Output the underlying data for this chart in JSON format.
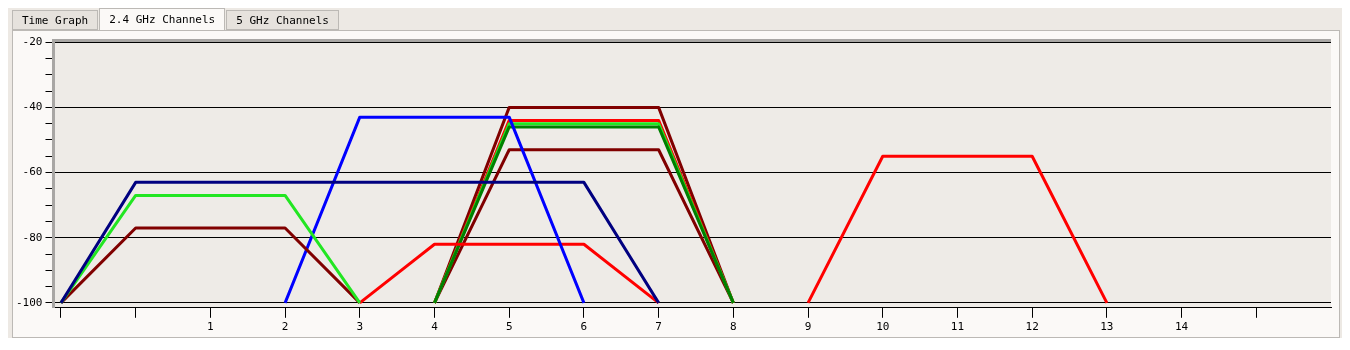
{
  "chart_data": {
    "type": "line",
    "annotations": [
      "Time Graph",
      "2.4 GHz Channels",
      "5 GHz Channels"
    ],
    "xlim": [
      -1.1,
      16
    ],
    "ylim": [
      -101.5,
      -19.5
    ],
    "xticks": [
      {
        "value": -1,
        "label": null
      },
      {
        "value": 0,
        "label": null
      },
      1,
      2,
      3,
      4,
      5,
      6,
      7,
      8,
      9,
      10,
      11,
      12,
      13,
      14,
      {
        "value": 15,
        "label": null
      }
    ],
    "yticks": [
      -100,
      {
        "value": -95,
        "label": null
      },
      {
        "value": -90,
        "label": null
      },
      {
        "value": -85,
        "label": null
      },
      -80,
      {
        "value": -75,
        "label": null
      },
      {
        "value": -70,
        "label": null
      },
      {
        "value": -65,
        "label": null
      },
      -60,
      {
        "value": -55,
        "label": null
      },
      {
        "value": -50,
        "label": null
      },
      {
        "value": -45,
        "label": null
      },
      -40,
      {
        "value": -35,
        "label": null
      },
      {
        "value": -30,
        "label": null
      },
      {
        "value": -25,
        "label": null
      },
      -20
    ],
    "grid": "y",
    "legend": false,
    "marker": "none",
    "line_style": "solid",
    "series": [
      {
        "color": "#000080",
        "x": [
          -1,
          0,
          6,
          7
        ],
        "values": [
          -100,
          -63,
          -63,
          -100
        ]
      },
      {
        "color": "#22e622",
        "x": [
          -1,
          0,
          2,
          3
        ],
        "values": [
          -100,
          -67,
          -67,
          -100
        ]
      },
      {
        "color": "#800000",
        "x": [
          -1,
          0,
          2,
          3
        ],
        "values": [
          -100,
          -77,
          -77,
          -100
        ]
      },
      {
        "color": "#0000ff",
        "x": [
          2,
          3,
          5,
          6
        ],
        "values": [
          -100,
          -43,
          -43,
          -100
        ]
      },
      {
        "color": "#ff0000",
        "x": [
          3,
          4,
          6,
          7
        ],
        "values": [
          -100,
          -82,
          -82,
          -100
        ]
      },
      {
        "color": "#008000",
        "x": [
          4,
          5,
          7,
          8
        ],
        "values": [
          -100,
          -46,
          -46,
          -100
        ]
      },
      {
        "color": "#22e622",
        "x": [
          4,
          5,
          7,
          8
        ],
        "values": [
          -100,
          -45,
          -45,
          -100
        ]
      },
      {
        "color": "#ff0000",
        "x": [
          4,
          5,
          7,
          8
        ],
        "values": [
          -100,
          -44,
          -44,
          -100
        ]
      },
      {
        "color": "#800000",
        "x": [
          4,
          5,
          7,
          8
        ],
        "values": [
          -100,
          -53,
          -53,
          -100
        ]
      },
      {
        "color": "#800000",
        "x": [
          4,
          5,
          7,
          8
        ],
        "values": [
          -100,
          -40,
          -40,
          -100
        ]
      },
      {
        "color": "#ff0000",
        "x": [
          9,
          10,
          12,
          13
        ],
        "values": [
          -100,
          -55,
          -55,
          -100
        ]
      }
    ]
  }
}
